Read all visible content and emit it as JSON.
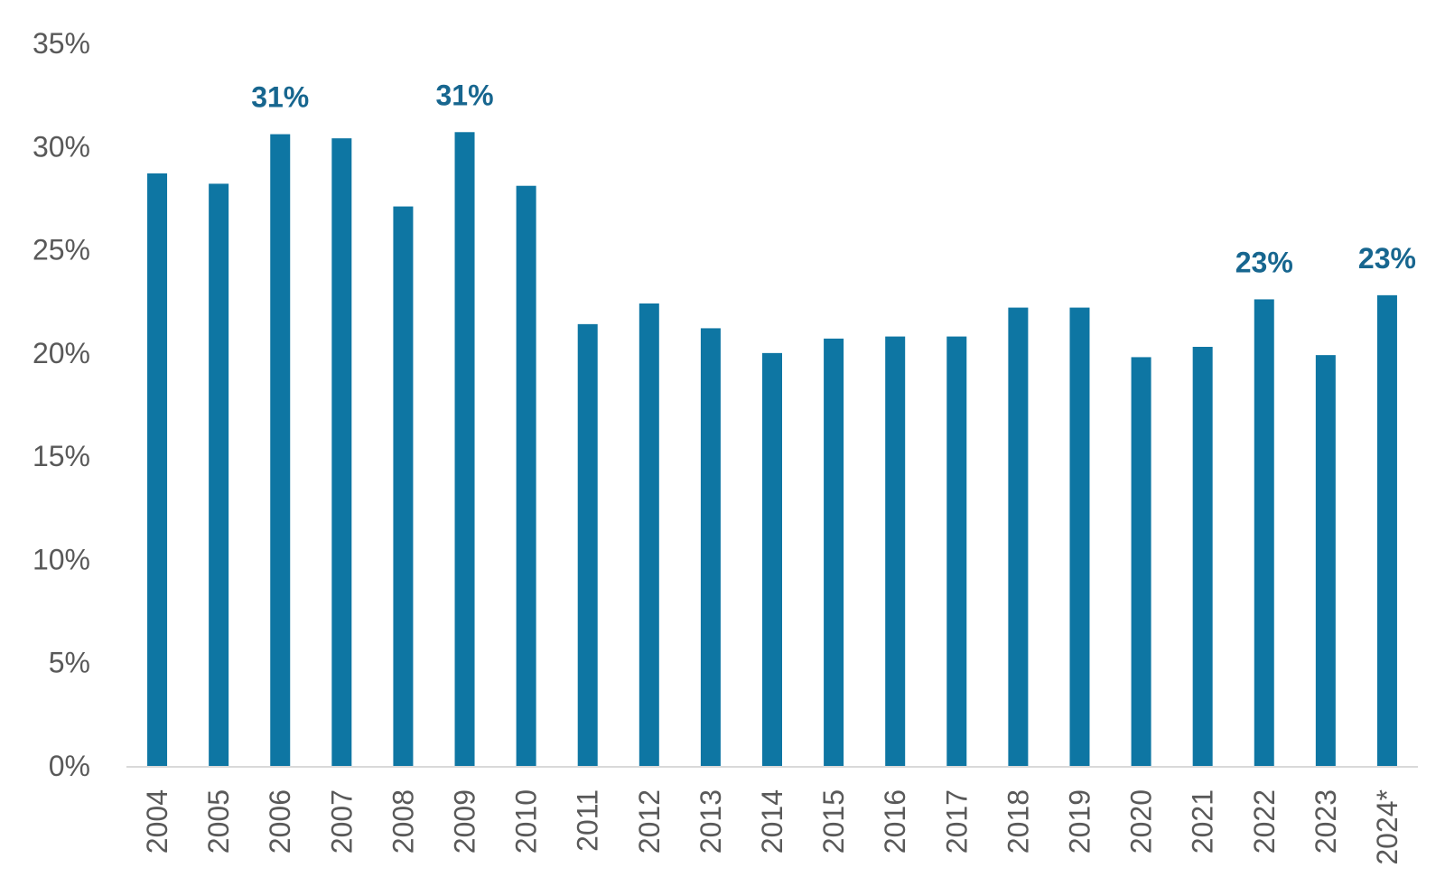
{
  "chart_data": {
    "type": "bar",
    "title": "",
    "xlabel": "",
    "ylabel": "",
    "categories": [
      "2004",
      "2005",
      "2006",
      "2007",
      "2008",
      "2009",
      "2010",
      "2011",
      "2012",
      "2013",
      "2014",
      "2015",
      "2016",
      "2017",
      "2018",
      "2019",
      "2020",
      "2021",
      "2022",
      "2023",
      "2024*"
    ],
    "values": [
      28.7,
      28.2,
      30.6,
      30.4,
      27.1,
      30.7,
      28.1,
      21.4,
      22.4,
      21.2,
      20.0,
      20.7,
      20.8,
      20.8,
      22.2,
      22.2,
      19.8,
      20.3,
      22.6,
      19.9,
      22.8
    ],
    "ylim": [
      0,
      35
    ],
    "yticks": [
      0,
      5,
      10,
      15,
      20,
      25,
      30,
      35
    ],
    "ytick_labels": [
      "0%",
      "5%",
      "10%",
      "15%",
      "20%",
      "25%",
      "30%",
      "35%"
    ],
    "data_labels": [
      {
        "category": "2006",
        "text": "31%"
      },
      {
        "category": "2009",
        "text": "31%"
      },
      {
        "category": "2022",
        "text": "23%"
      },
      {
        "category": "2024*",
        "text": "23%"
      }
    ],
    "grid": false,
    "legend": "none",
    "colors": {
      "bar": "#0e76a3",
      "data_label": "#17668f",
      "axis": "#d9d9d9",
      "text": "#595959"
    }
  }
}
